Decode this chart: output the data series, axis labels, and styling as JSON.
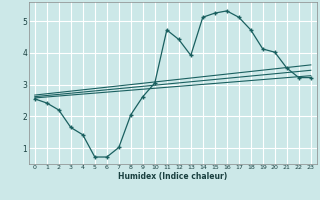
{
  "xlabel": "Humidex (Indice chaleur)",
  "background_color": "#cce8e8",
  "grid_color": "#ffffff",
  "line_color": "#1a6060",
  "xlim": [
    -0.5,
    23.5
  ],
  "ylim": [
    0.5,
    5.6
  ],
  "xticks": [
    0,
    1,
    2,
    3,
    4,
    5,
    6,
    7,
    8,
    9,
    10,
    11,
    12,
    13,
    14,
    15,
    16,
    17,
    18,
    19,
    20,
    21,
    22,
    23
  ],
  "yticks": [
    1,
    2,
    3,
    4,
    5
  ],
  "main_x": [
    0,
    1,
    2,
    3,
    4,
    5,
    6,
    7,
    8,
    9,
    10,
    11,
    12,
    13,
    14,
    15,
    16,
    17,
    18,
    19,
    20,
    21,
    22,
    23
  ],
  "main_y": [
    2.55,
    2.42,
    2.2,
    1.65,
    1.42,
    0.72,
    0.72,
    1.02,
    2.05,
    2.62,
    3.05,
    4.72,
    4.42,
    3.92,
    5.12,
    5.25,
    5.32,
    5.12,
    4.72,
    4.12,
    4.02,
    3.52,
    3.22,
    3.22
  ],
  "line1_x": [
    0,
    23
  ],
  "line1_y": [
    2.58,
    3.28
  ],
  "line2_x": [
    0,
    23
  ],
  "line2_y": [
    2.62,
    3.45
  ],
  "line3_x": [
    0,
    23
  ],
  "line3_y": [
    2.67,
    3.62
  ]
}
